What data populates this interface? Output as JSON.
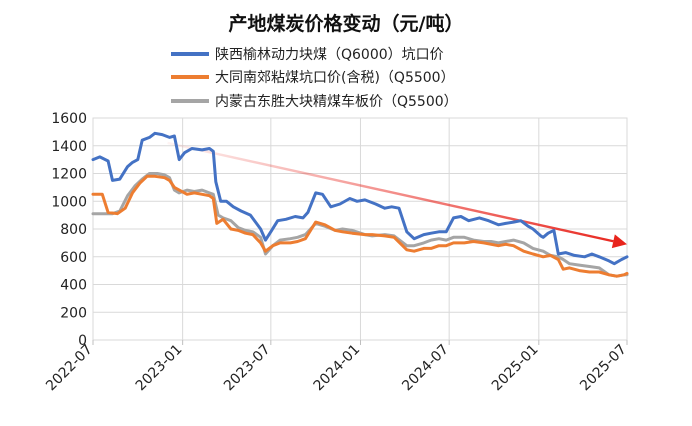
{
  "chart_data": {
    "type": "line",
    "title": "产地煤炭价格变动（元/吨）",
    "xlabel": "",
    "ylabel": "",
    "ylim": [
      0,
      1600
    ],
    "yticks": [
      0,
      200,
      400,
      600,
      800,
      1000,
      1200,
      1400,
      1600
    ],
    "xticks": [
      "2022-07",
      "2023-01",
      "2023-07",
      "2024-01",
      "2024-07",
      "2025-01",
      "2025-07"
    ],
    "xrange": [
      "2022-07",
      "2025-07"
    ],
    "grid": {
      "x": true,
      "y": true
    },
    "legend_position": "top",
    "arrow": {
      "from": [
        "2022-12",
        1420
      ],
      "to": [
        "2025-07",
        690
      ],
      "color": "#e8241c"
    },
    "series": [
      {
        "name": "陕西榆林动力块煤（Q6000）坑口价",
        "color": "#4472c4",
        "points": [
          [
            "2022-07",
            1300
          ],
          [
            "2022-07-15",
            1320
          ],
          [
            "2022-08-01",
            1290
          ],
          [
            "2022-08-10",
            1150
          ],
          [
            "2022-08-25",
            1160
          ],
          [
            "2022-09-10",
            1250
          ],
          [
            "2022-09-20",
            1280
          ],
          [
            "2022-10-01",
            1300
          ],
          [
            "2022-10-10",
            1440
          ],
          [
            "2022-10-25",
            1460
          ],
          [
            "2022-11-05",
            1490
          ],
          [
            "2022-11-20",
            1480
          ],
          [
            "2022-12-05",
            1460
          ],
          [
            "2022-12-15",
            1470
          ],
          [
            "2022-12-25",
            1300
          ],
          [
            "2023-01-05",
            1350
          ],
          [
            "2023-01-20",
            1380
          ],
          [
            "2023-02-10",
            1370
          ],
          [
            "2023-02-25",
            1380
          ],
          [
            "2023-03-05",
            1360
          ],
          [
            "2023-03-10",
            1140
          ],
          [
            "2023-03-20",
            1000
          ],
          [
            "2023-04-01",
            1000
          ],
          [
            "2023-04-15",
            960
          ],
          [
            "2023-05-01",
            930
          ],
          [
            "2023-05-20",
            900
          ],
          [
            "2023-06-10",
            800
          ],
          [
            "2023-06-20",
            720
          ],
          [
            "2023-07-01",
            780
          ],
          [
            "2023-07-15",
            860
          ],
          [
            "2023-08-01",
            870
          ],
          [
            "2023-08-20",
            890
          ],
          [
            "2023-09-05",
            880
          ],
          [
            "2023-09-15",
            920
          ],
          [
            "2023-10-01",
            1060
          ],
          [
            "2023-10-15",
            1050
          ],
          [
            "2023-11-01",
            960
          ],
          [
            "2023-11-20",
            980
          ],
          [
            "2023-12-10",
            1020
          ],
          [
            "2023-12-25",
            1000
          ],
          [
            "2024-01-10",
            1010
          ],
          [
            "2024-02-01",
            980
          ],
          [
            "2024-02-20",
            950
          ],
          [
            "2024-03-05",
            960
          ],
          [
            "2024-03-20",
            950
          ],
          [
            "2024-04-05",
            780
          ],
          [
            "2024-04-20",
            730
          ],
          [
            "2024-05-10",
            760
          ],
          [
            "2024-05-25",
            770
          ],
          [
            "2024-06-10",
            780
          ],
          [
            "2024-06-25",
            780
          ],
          [
            "2024-07-10",
            880
          ],
          [
            "2024-07-25",
            890
          ],
          [
            "2024-08-10",
            860
          ],
          [
            "2024-09-01",
            880
          ],
          [
            "2024-09-20",
            860
          ],
          [
            "2024-10-10",
            830
          ],
          [
            "2024-10-25",
            840
          ],
          [
            "2024-11-10",
            850
          ],
          [
            "2024-11-25",
            860
          ],
          [
            "2024-12-10",
            820
          ],
          [
            "2024-12-20",
            800
          ],
          [
            "2025-01-05",
            750
          ],
          [
            "2025-01-10",
            740
          ],
          [
            "2025-01-20",
            770
          ],
          [
            "2025-02-01",
            790
          ],
          [
            "2025-02-10",
            620
          ],
          [
            "2025-02-25",
            630
          ],
          [
            "2025-03-15",
            610
          ],
          [
            "2025-04-05",
            600
          ],
          [
            "2025-04-20",
            620
          ],
          [
            "2025-05-05",
            600
          ],
          [
            "2025-05-25",
            570
          ],
          [
            "2025-06-05",
            550
          ],
          [
            "2025-06-20",
            580
          ],
          [
            "2025-07",
            600
          ]
        ]
      },
      {
        "name": "大同南郊粘煤坑口价(含税)（Q5500）",
        "color": "#ed7d31",
        "points": [
          [
            "2022-07",
            1050
          ],
          [
            "2022-07-20",
            1050
          ],
          [
            "2022-08-01",
            920
          ],
          [
            "2022-08-20",
            910
          ],
          [
            "2022-09-05",
            950
          ],
          [
            "2022-09-20",
            1060
          ],
          [
            "2022-10-05",
            1130
          ],
          [
            "2022-10-20",
            1180
          ],
          [
            "2022-11-05",
            1180
          ],
          [
            "2022-11-25",
            1170
          ],
          [
            "2022-12-05",
            1150
          ],
          [
            "2022-12-15",
            1100
          ],
          [
            "2022-12-25",
            1080
          ],
          [
            "2023-01-10",
            1050
          ],
          [
            "2023-01-25",
            1060
          ],
          [
            "2023-02-10",
            1050
          ],
          [
            "2023-02-25",
            1040
          ],
          [
            "2023-03-05",
            1020
          ],
          [
            "2023-03-12",
            840
          ],
          [
            "2023-03-25",
            870
          ],
          [
            "2023-04-10",
            800
          ],
          [
            "2023-04-25",
            790
          ],
          [
            "2023-05-10",
            770
          ],
          [
            "2023-05-25",
            760
          ],
          [
            "2023-06-10",
            700
          ],
          [
            "2023-06-20",
            640
          ],
          [
            "2023-07-05",
            680
          ],
          [
            "2023-07-20",
            700
          ],
          [
            "2023-08-10",
            700
          ],
          [
            "2023-08-25",
            710
          ],
          [
            "2023-09-10",
            730
          ],
          [
            "2023-10-01",
            850
          ],
          [
            "2023-10-20",
            830
          ],
          [
            "2023-11-10",
            790
          ],
          [
            "2023-11-25",
            780
          ],
          [
            "2023-12-15",
            770
          ],
          [
            "2024-01-10",
            760
          ],
          [
            "2024-01-25",
            760
          ],
          [
            "2024-02-20",
            750
          ],
          [
            "2024-03-10",
            740
          ],
          [
            "2024-04-05",
            650
          ],
          [
            "2024-04-20",
            640
          ],
          [
            "2024-05-10",
            660
          ],
          [
            "2024-05-25",
            660
          ],
          [
            "2024-06-10",
            680
          ],
          [
            "2024-06-25",
            680
          ],
          [
            "2024-07-10",
            700
          ],
          [
            "2024-08-01",
            700
          ],
          [
            "2024-08-20",
            710
          ],
          [
            "2024-09-10",
            700
          ],
          [
            "2024-09-25",
            690
          ],
          [
            "2024-10-10",
            680
          ],
          [
            "2024-10-25",
            690
          ],
          [
            "2024-11-10",
            680
          ],
          [
            "2024-12-01",
            640
          ],
          [
            "2024-12-20",
            620
          ],
          [
            "2025-01-10",
            600
          ],
          [
            "2025-01-25",
            610
          ],
          [
            "2025-02-10",
            580
          ],
          [
            "2025-02-20",
            510
          ],
          [
            "2025-03-05",
            520
          ],
          [
            "2025-03-25",
            500
          ],
          [
            "2025-04-15",
            490
          ],
          [
            "2025-05-05",
            490
          ],
          [
            "2025-05-25",
            470
          ],
          [
            "2025-06-10",
            460
          ],
          [
            "2025-06-25",
            470
          ],
          [
            "2025-07",
            480
          ]
        ]
      },
      {
        "name": "内蒙古东胜大块精煤车板价（Q5500）",
        "color": "#a5a5a5",
        "points": [
          [
            "2022-07",
            910
          ],
          [
            "2022-07-20",
            910
          ],
          [
            "2022-08-10",
            910
          ],
          [
            "2022-08-25",
            930
          ],
          [
            "2022-09-10",
            1040
          ],
          [
            "2022-09-25",
            1110
          ],
          [
            "2022-10-10",
            1160
          ],
          [
            "2022-10-25",
            1200
          ],
          [
            "2022-11-10",
            1200
          ],
          [
            "2022-11-25",
            1190
          ],
          [
            "2022-12-05",
            1170
          ],
          [
            "2022-12-15",
            1080
          ],
          [
            "2022-12-25",
            1060
          ],
          [
            "2023-01-10",
            1080
          ],
          [
            "2023-01-25",
            1070
          ],
          [
            "2023-02-10",
            1080
          ],
          [
            "2023-02-25",
            1060
          ],
          [
            "2023-03-05",
            1050
          ],
          [
            "2023-03-15",
            900
          ],
          [
            "2023-03-25",
            880
          ],
          [
            "2023-04-10",
            860
          ],
          [
            "2023-04-25",
            810
          ],
          [
            "2023-05-10",
            790
          ],
          [
            "2023-05-25",
            780
          ],
          [
            "2023-06-10",
            740
          ],
          [
            "2023-06-20",
            620
          ],
          [
            "2023-07-05",
            680
          ],
          [
            "2023-07-20",
            720
          ],
          [
            "2023-08-10",
            730
          ],
          [
            "2023-08-25",
            740
          ],
          [
            "2023-09-10",
            760
          ],
          [
            "2023-10-01",
            840
          ],
          [
            "2023-10-20",
            820
          ],
          [
            "2023-11-10",
            790
          ],
          [
            "2023-11-25",
            800
          ],
          [
            "2023-12-15",
            790
          ],
          [
            "2024-01-10",
            760
          ],
          [
            "2024-01-25",
            750
          ],
          [
            "2024-02-20",
            760
          ],
          [
            "2024-03-10",
            750
          ],
          [
            "2024-04-05",
            680
          ],
          [
            "2024-04-20",
            680
          ],
          [
            "2024-05-10",
            700
          ],
          [
            "2024-05-25",
            720
          ],
          [
            "2024-06-10",
            730
          ],
          [
            "2024-06-25",
            720
          ],
          [
            "2024-07-10",
            740
          ],
          [
            "2024-08-01",
            740
          ],
          [
            "2024-08-20",
            720
          ],
          [
            "2024-09-10",
            710
          ],
          [
            "2024-09-25",
            710
          ],
          [
            "2024-10-10",
            700
          ],
          [
            "2024-10-25",
            710
          ],
          [
            "2024-11-10",
            720
          ],
          [
            "2024-12-01",
            700
          ],
          [
            "2024-12-20",
            660
          ],
          [
            "2025-01-10",
            640
          ],
          [
            "2025-01-25",
            610
          ],
          [
            "2025-02-10",
            600
          ],
          [
            "2025-02-20",
            580
          ],
          [
            "2025-03-05",
            550
          ],
          [
            "2025-03-25",
            540
          ],
          [
            "2025-04-15",
            530
          ],
          [
            "2025-05-05",
            520
          ],
          [
            "2025-05-25",
            470
          ],
          [
            "2025-06-10",
            460
          ],
          [
            "2025-06-25",
            470
          ],
          [
            "2025-07",
            470
          ]
        ]
      }
    ]
  }
}
